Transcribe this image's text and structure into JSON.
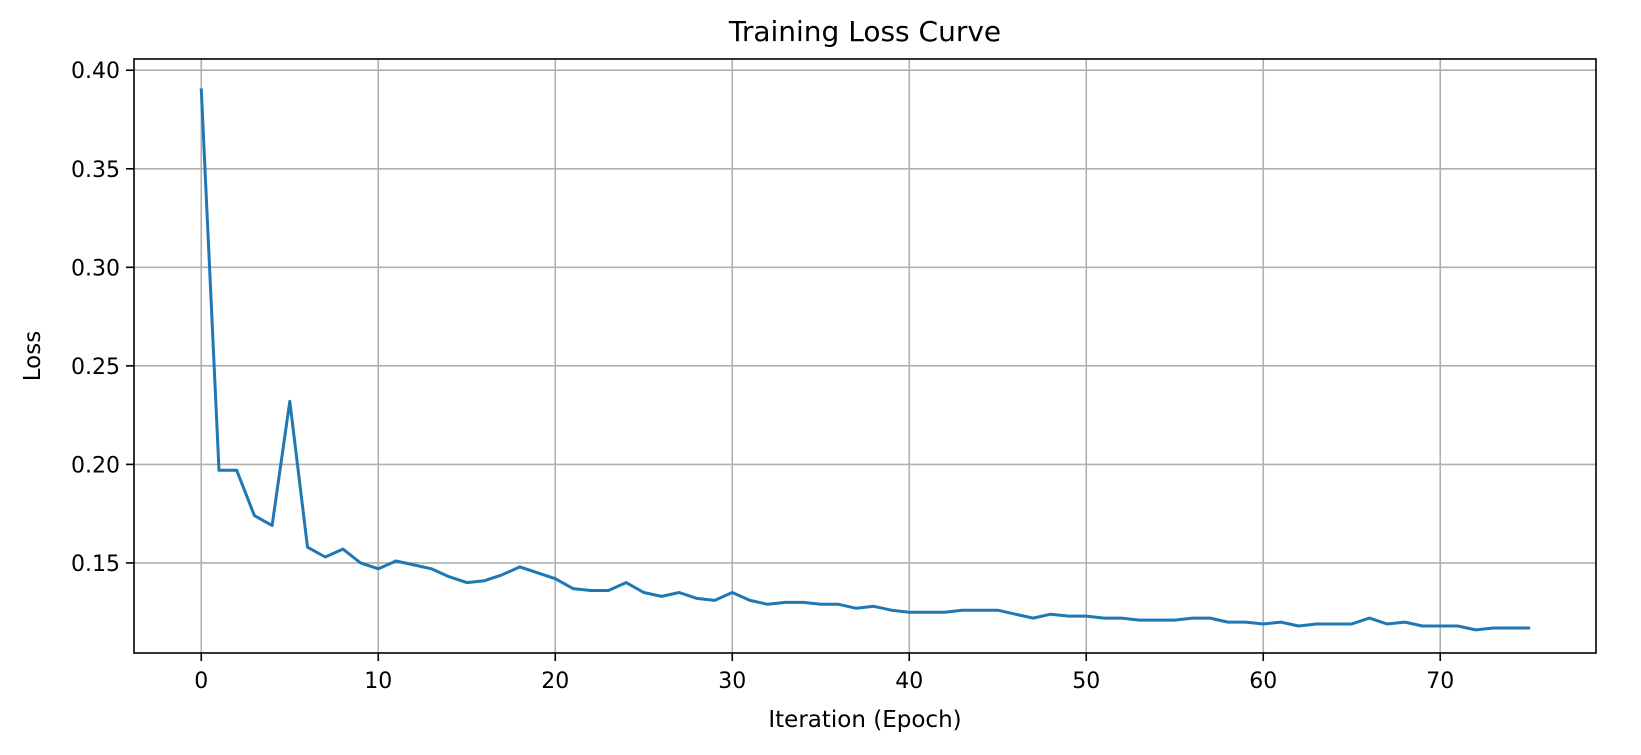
{
  "chart_data": {
    "type": "line",
    "title": "Training Loss Curve",
    "xlabel": "Iteration (Epoch)",
    "ylabel": "Loss",
    "xlim": [
      -3.8,
      78.8
    ],
    "ylim": [
      0.1043,
      0.4057
    ],
    "xticks": [
      0,
      10,
      20,
      30,
      40,
      50,
      60,
      70
    ],
    "xtick_labels": [
      "0",
      "10",
      "20",
      "30",
      "40",
      "50",
      "60",
      "70"
    ],
    "yticks": [
      0.15,
      0.2,
      0.25,
      0.3,
      0.35,
      0.4
    ],
    "ytick_labels": [
      "0.15",
      "0.20",
      "0.25",
      "0.30",
      "0.35",
      "0.40"
    ],
    "grid": true,
    "series": [
      {
        "name": "Training Loss",
        "color": "#1f77b4",
        "x": [
          0,
          1,
          2,
          3,
          4,
          5,
          6,
          7,
          8,
          9,
          10,
          11,
          12,
          13,
          14,
          15,
          16,
          17,
          18,
          19,
          20,
          21,
          22,
          23,
          24,
          25,
          26,
          27,
          28,
          29,
          30,
          31,
          32,
          33,
          34,
          35,
          36,
          37,
          38,
          39,
          40,
          41,
          42,
          43,
          44,
          45,
          46,
          47,
          48,
          49,
          50,
          51,
          52,
          53,
          54,
          55,
          56,
          57,
          58,
          59,
          60,
          61,
          62,
          63,
          64,
          65,
          66,
          67,
          68,
          69,
          70,
          71,
          72,
          73,
          74,
          75
        ],
        "values": [
          0.39,
          0.197,
          0.197,
          0.174,
          0.169,
          0.232,
          0.158,
          0.153,
          0.157,
          0.15,
          0.147,
          0.151,
          0.149,
          0.147,
          0.143,
          0.14,
          0.141,
          0.144,
          0.148,
          0.145,
          0.142,
          0.137,
          0.136,
          0.136,
          0.14,
          0.135,
          0.133,
          0.135,
          0.132,
          0.131,
          0.135,
          0.131,
          0.129,
          0.13,
          0.13,
          0.129,
          0.129,
          0.127,
          0.128,
          0.126,
          0.125,
          0.125,
          0.125,
          0.126,
          0.126,
          0.126,
          0.124,
          0.122,
          0.124,
          0.123,
          0.123,
          0.122,
          0.122,
          0.121,
          0.121,
          0.121,
          0.122,
          0.122,
          0.12,
          0.12,
          0.119,
          0.12,
          0.118,
          0.119,
          0.119,
          0.119,
          0.122,
          0.119,
          0.12,
          0.118,
          0.118,
          0.118,
          0.116,
          0.117,
          0.117,
          0.117
        ]
      }
    ]
  }
}
